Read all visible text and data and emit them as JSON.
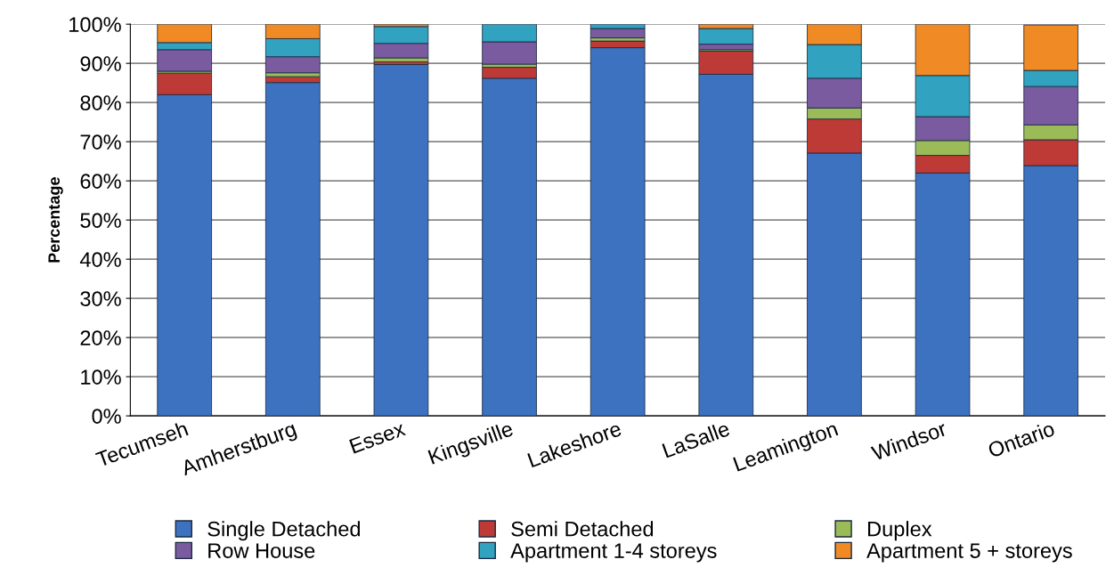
{
  "chart_data": {
    "type": "bar",
    "stacked": true,
    "ylabel": "Percentage",
    "categories": [
      "Tecumseh",
      "Amherstburg",
      "Essex",
      "Kingsville",
      "Lakeshore",
      "LaSalle",
      "Leamington",
      "Windsor",
      "Ontario"
    ],
    "series": [
      {
        "name": "Single Detached",
        "color": "#3d72c0",
        "values": [
          82,
          85.1,
          89.7,
          86.2,
          94,
          87.2,
          67.1,
          62,
          63.9
        ]
      },
      {
        "name": "Semi Detached",
        "color": "#be3a36",
        "values": [
          5.5,
          1.5,
          0.7,
          2.8,
          1.7,
          5.9,
          8.7,
          4.5,
          6.6
        ]
      },
      {
        "name": "Duplex",
        "color": "#9bbb59",
        "values": [
          0.5,
          1.0,
          1.0,
          0.8,
          0.8,
          0.4,
          2.8,
          3.8,
          3.8
        ]
      },
      {
        "name": "Row House",
        "color": "#7a5ba0",
        "values": [
          5.5,
          4.1,
          3.7,
          5.7,
          2.4,
          1.4,
          7.6,
          6.1,
          9.8
        ]
      },
      {
        "name": "Apartment 1-4 storeys",
        "color": "#31a3c0",
        "values": [
          1.8,
          4.6,
          4.3,
          4.5,
          1.1,
          4.0,
          8.6,
          10.5,
          4.1
        ]
      },
      {
        "name": "Apartment 5 + storeys",
        "color": "#f08a24",
        "values": [
          4.7,
          3.7,
          0.6,
          null,
          null,
          1.1,
          5.2,
          13.1,
          11.6
        ]
      }
    ],
    "ylim": [
      0,
      100
    ],
    "yticks": [
      {
        "value": 0,
        "label": "0%"
      },
      {
        "value": 10,
        "label": "10%"
      },
      {
        "value": 20,
        "label": "20%"
      },
      {
        "value": 30,
        "label": "30%"
      },
      {
        "value": 40,
        "label": "40%"
      },
      {
        "value": 50,
        "label": "50%"
      },
      {
        "value": 60,
        "label": "60%"
      },
      {
        "value": 70,
        "label": "70%"
      },
      {
        "value": 80,
        "label": "80%"
      },
      {
        "value": 90,
        "label": "90%"
      },
      {
        "value": 100,
        "label": "100%"
      }
    ],
    "grid": "y",
    "legend": "bottom",
    "marker": "square"
  }
}
